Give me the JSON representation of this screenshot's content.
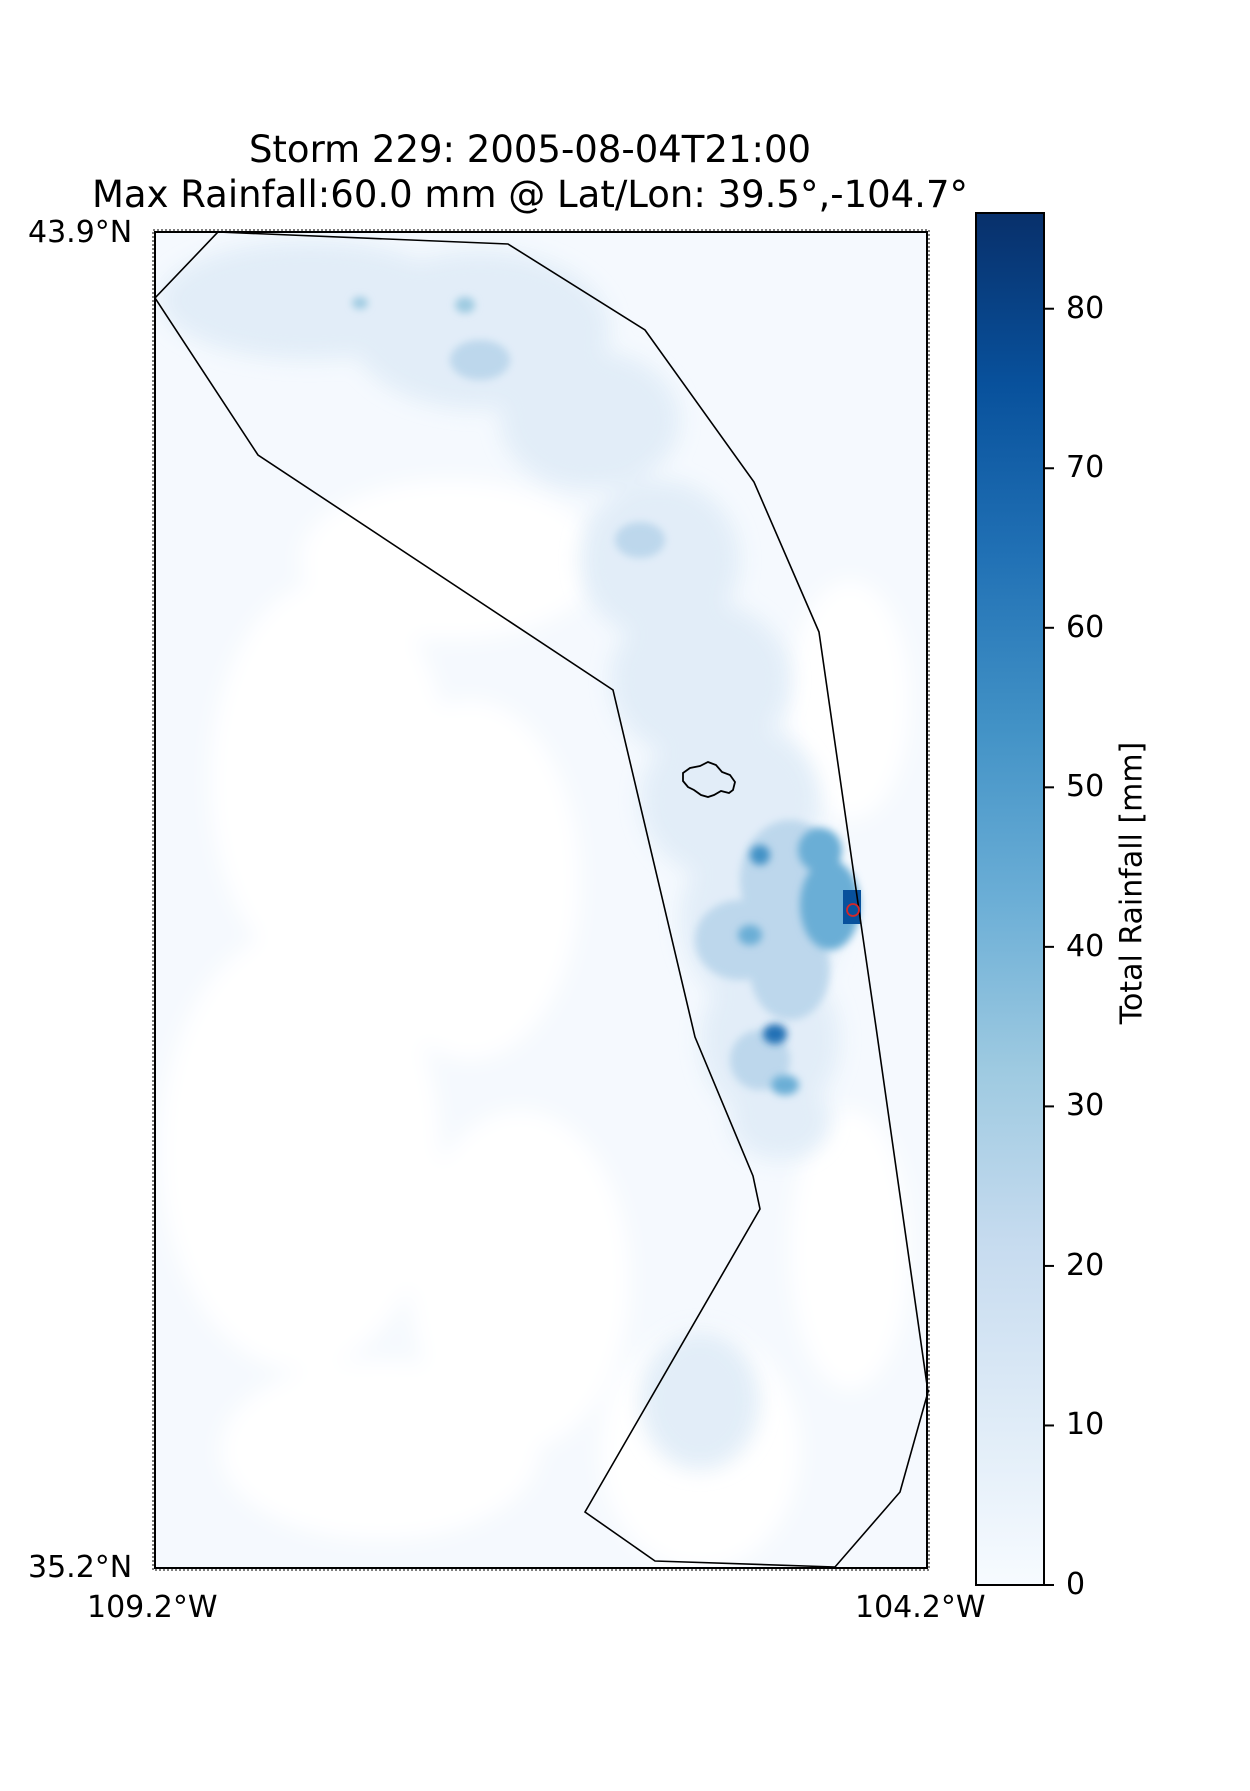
{
  "header": {
    "title_line1": "Storm 229: 2005-08-04T21:00",
    "title_line2": "Max Rainfall:60.0 mm @ Lat/Lon:  39.5°,-104.7°"
  },
  "map": {
    "lat_top_label": "43.9°N",
    "lat_bottom_label": "35.2°N",
    "lon_left_label": "109.2°W",
    "lon_right_label": "104.2°W",
    "lat_range": [
      35.2,
      43.9
    ],
    "lon_range": [
      -109.2,
      -104.2
    ],
    "max_marker": {
      "lat": 39.5,
      "lon": -104.7,
      "color": "#d62728"
    }
  },
  "colorbar": {
    "label": "Total Rainfall [mm]",
    "cmap": "Blues",
    "range": [
      0,
      86
    ],
    "ticks": [
      "0",
      "10",
      "20",
      "30",
      "40",
      "50",
      "60",
      "70",
      "80"
    ]
  },
  "colors": {
    "blues_low": "#f7fbff",
    "blues_mid": "#6baed6",
    "blues_high": "#08306b",
    "max_marker": "#d62728"
  }
}
